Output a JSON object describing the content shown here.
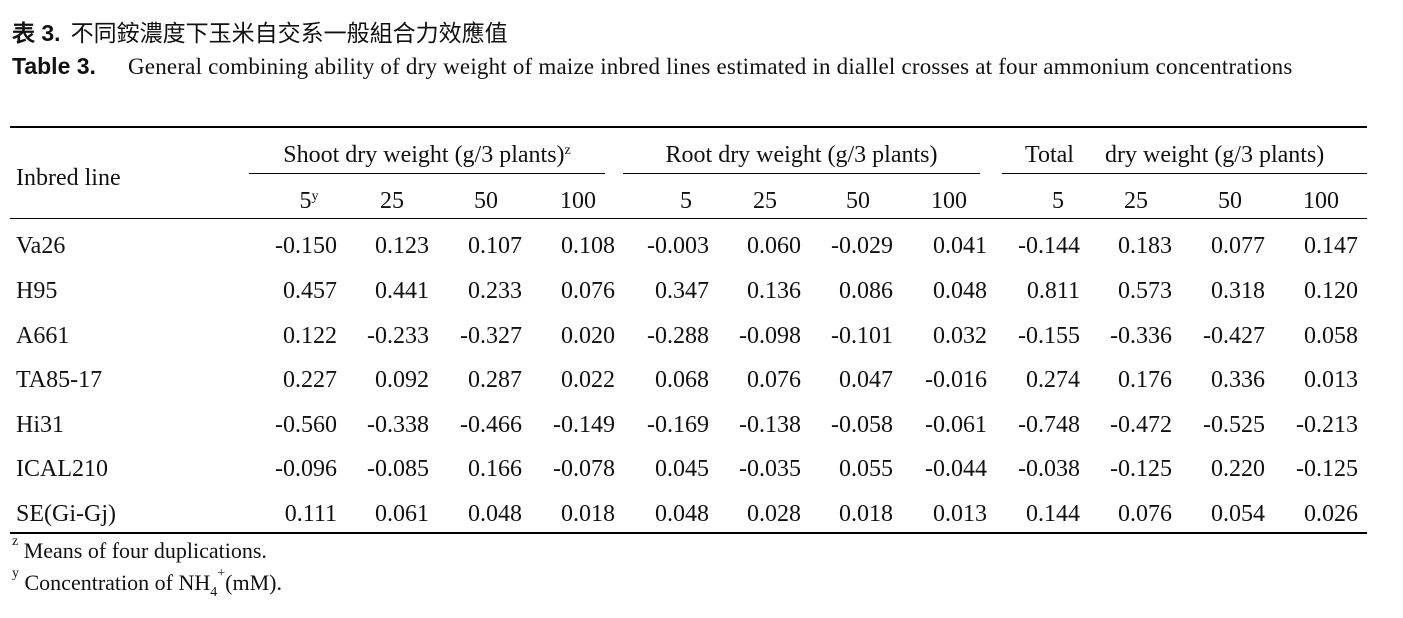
{
  "caption_zh": {
    "label": "表 3.",
    "text": "不同銨濃度下玉米自交系一般組合力效應值"
  },
  "caption_en": {
    "label": "Table 3.",
    "text": "General combining ability of dry weight of maize inbred lines estimated in diallel crosses at four ammonium concentrations"
  },
  "table": {
    "row_header": "Inbred line",
    "groups": [
      {
        "label": "Shoot dry weight (g/3 plants)",
        "sup": "z"
      },
      {
        "label": "Root dry weight (g/3 plants)",
        "sup": ""
      },
      {
        "label_a": "Total",
        "label_b": "dry weight (g/3 plants)",
        "sup": ""
      }
    ],
    "conc_first": {
      "value": "5",
      "sup": "y"
    },
    "concentrations": [
      "5",
      "25",
      "50",
      "100",
      "5",
      "25",
      "50",
      "100",
      "5",
      "25",
      "50",
      "100"
    ],
    "rows": [
      {
        "line": "Va26",
        "values": [
          "-0.150",
          "0.123",
          "0.107",
          "0.108",
          "-0.003",
          "0.060",
          "-0.029",
          "0.041",
          "-0.144",
          "0.183",
          "0.077",
          "0.147"
        ]
      },
      {
        "line": "H95",
        "values": [
          "0.457",
          "0.441",
          "0.233",
          "0.076",
          "0.347",
          "0.136",
          "0.086",
          "0.048",
          "0.811",
          "0.573",
          "0.318",
          "0.120"
        ]
      },
      {
        "line": "A661",
        "values": [
          "0.122",
          "-0.233",
          "-0.327",
          "0.020",
          "-0.288",
          "-0.098",
          "-0.101",
          "0.032",
          "-0.155",
          "-0.336",
          "-0.427",
          "0.058"
        ]
      },
      {
        "line": "TA85-17",
        "values": [
          "0.227",
          "0.092",
          "0.287",
          "0.022",
          "0.068",
          "0.076",
          "0.047",
          "-0.016",
          "0.274",
          "0.176",
          "0.336",
          "0.013"
        ]
      },
      {
        "line": "Hi31",
        "values": [
          "-0.560",
          "-0.338",
          "-0.466",
          "-0.149",
          "-0.169",
          "-0.138",
          "-0.058",
          "-0.061",
          "-0.748",
          "-0.472",
          "-0.525",
          "-0.213"
        ]
      },
      {
        "line": "ICAL210",
        "values": [
          "-0.096",
          "-0.085",
          "0.166",
          "-0.078",
          "0.045",
          "-0.035",
          "0.055",
          "-0.044",
          "-0.038",
          "-0.125",
          "0.220",
          "-0.125"
        ]
      },
      {
        "line": "SE(Gi-Gj)",
        "values": [
          "0.111",
          "0.061",
          "0.048",
          "0.018",
          "0.048",
          "0.028",
          "0.018",
          "0.013",
          "0.144",
          "0.076",
          "0.054",
          "0.026"
        ]
      }
    ]
  },
  "footnotes": [
    {
      "mark": "z",
      "text": "Means of four duplications."
    },
    {
      "mark": "y",
      "text_a": "Concentration of NH",
      "sub": "4",
      "sup": "+",
      "text_b": "(mM)."
    }
  ]
}
